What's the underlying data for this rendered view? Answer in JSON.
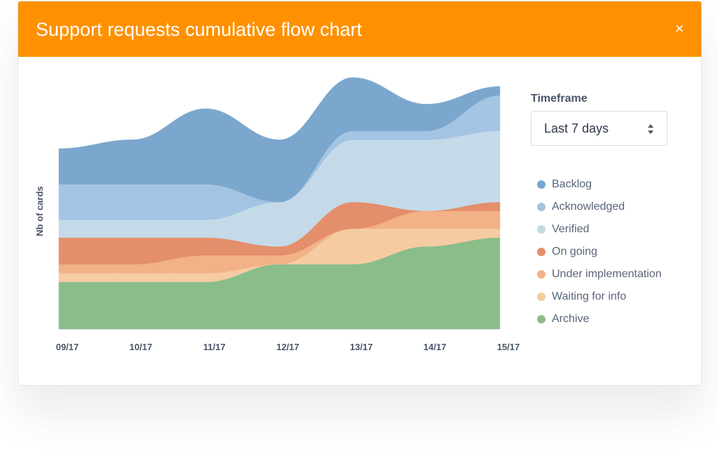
{
  "header": {
    "title": "Support requests cumulative flow chart",
    "close_symbol": "×"
  },
  "timeframe": {
    "label": "Timeframe",
    "selected": "Last 7 days"
  },
  "colors": {
    "header": "#ff9100",
    "Backlog": "#7ba7ce",
    "Acknowledged": "#a3c4e2",
    "Verified": "#c4dae9",
    "On going": "#e48e6b",
    "Under implementation": "#f2b186",
    "Waiting for info": "#f5cba2",
    "Archive": "#8abd8a"
  },
  "chart_data": {
    "type": "area",
    "stacked": true,
    "title": "",
    "ylabel": "Nb of cards",
    "xlabel": "",
    "categories": [
      "09/17",
      "10/17",
      "11/17",
      "12/17",
      "13/17",
      "14/17",
      "15/17"
    ],
    "ylim": [
      0,
      27
    ],
    "grid": false,
    "legend_position": "right",
    "series": [
      {
        "name": "Archive",
        "values": [
          5.3,
          5.3,
          5.3,
          7.3,
          7.3,
          9.3,
          10.3
        ]
      },
      {
        "name": "Waiting for info",
        "values": [
          1.0,
          1.0,
          1.0,
          0.0,
          4.0,
          2.0,
          1.0
        ]
      },
      {
        "name": "Under implementation",
        "values": [
          1.0,
          1.0,
          2.0,
          1.0,
          0.0,
          2.0,
          2.0
        ]
      },
      {
        "name": "On going",
        "values": [
          3.0,
          3.0,
          2.0,
          1.0,
          3.0,
          0.0,
          1.0
        ]
      },
      {
        "name": "Verified",
        "values": [
          2.0,
          2.0,
          2.0,
          5.0,
          7.0,
          8.0,
          8.0
        ]
      },
      {
        "name": "Acknowledged",
        "values": [
          4.0,
          4.0,
          4.0,
          0.0,
          1.0,
          1.0,
          4.0
        ]
      },
      {
        "name": "Backlog",
        "values": [
          4.0,
          5.0,
          8.5,
          7.0,
          6.0,
          3.0,
          1.0
        ]
      }
    ],
    "legend": [
      "Backlog",
      "Acknowledged",
      "Verified",
      "On going",
      "Under implementation",
      "Waiting for info",
      "Archive"
    ]
  }
}
